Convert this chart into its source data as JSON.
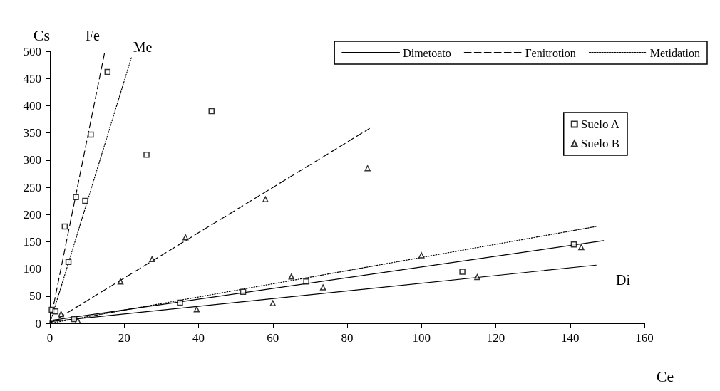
{
  "chart_data": {
    "type": "scatter",
    "xlabel": "Ce",
    "ylabel": "Cs",
    "xlim": [
      0,
      160
    ],
    "xticks": [
      0,
      20,
      40,
      60,
      80,
      100,
      120,
      140,
      160
    ],
    "ylim": [
      0,
      500
    ],
    "yticks": [
      0,
      50,
      100,
      150,
      200,
      250,
      300,
      350,
      400,
      450,
      500
    ],
    "grid": false,
    "legend": "top right",
    "series": [
      {
        "name": "Dimetoato",
        "type": "line",
        "line_style": "solid",
        "marker": "none",
        "color": "#000000",
        "x": [
          0,
          149
        ],
        "values": [
          5,
          152
        ]
      },
      {
        "type": "line",
        "line_style": "solid",
        "marker": "none",
        "color": "#000000",
        "x": [
          0,
          147
        ],
        "values": [
          3,
          107
        ]
      },
      {
        "name": "Fenitrotion",
        "type": "line",
        "line_style": "dashed",
        "marker": "none",
        "color": "#000000",
        "x": [
          0,
          14.8
        ],
        "values": [
          0,
          500
        ]
      },
      {
        "type": "line",
        "line_style": "dashed",
        "marker": "none",
        "color": "#000000",
        "x": [
          0,
          86
        ],
        "values": [
          0,
          358
        ]
      },
      {
        "name": "Metidation",
        "type": "line",
        "line_style": "dotted",
        "marker": "none",
        "color": "#000000",
        "x": [
          0,
          147
        ],
        "values": [
          0,
          178
        ]
      },
      {
        "type": "line",
        "line_style": "dotted",
        "marker": "none",
        "color": "#000000",
        "x": [
          0,
          22
        ],
        "values": [
          0,
          490
        ]
      },
      {
        "name": "Suelo A",
        "marker": "square",
        "color": "#000000",
        "x": [
          0.5,
          1.5,
          4,
          5,
          7,
          9.5,
          11,
          15.5,
          26,
          43.5,
          6.5,
          35,
          52,
          69,
          111,
          141
        ],
        "values": [
          25,
          22,
          178,
          113,
          232,
          225,
          347,
          462,
          310,
          390,
          8,
          38,
          58,
          77,
          95,
          145
        ]
      },
      {
        "name": "Suelo B",
        "marker": "triangle",
        "color": "#000000",
        "x": [
          3,
          7.5,
          19,
          27.5,
          36.5,
          58,
          85.5,
          39.5,
          60,
          65,
          73.5,
          100,
          115,
          143
        ],
        "values": [
          17,
          5,
          77,
          118,
          158,
          228,
          285,
          26,
          37,
          86,
          66,
          125,
          85,
          140
        ]
      }
    ],
    "annotations": [
      "Fe",
      "Me",
      "Di"
    ]
  }
}
